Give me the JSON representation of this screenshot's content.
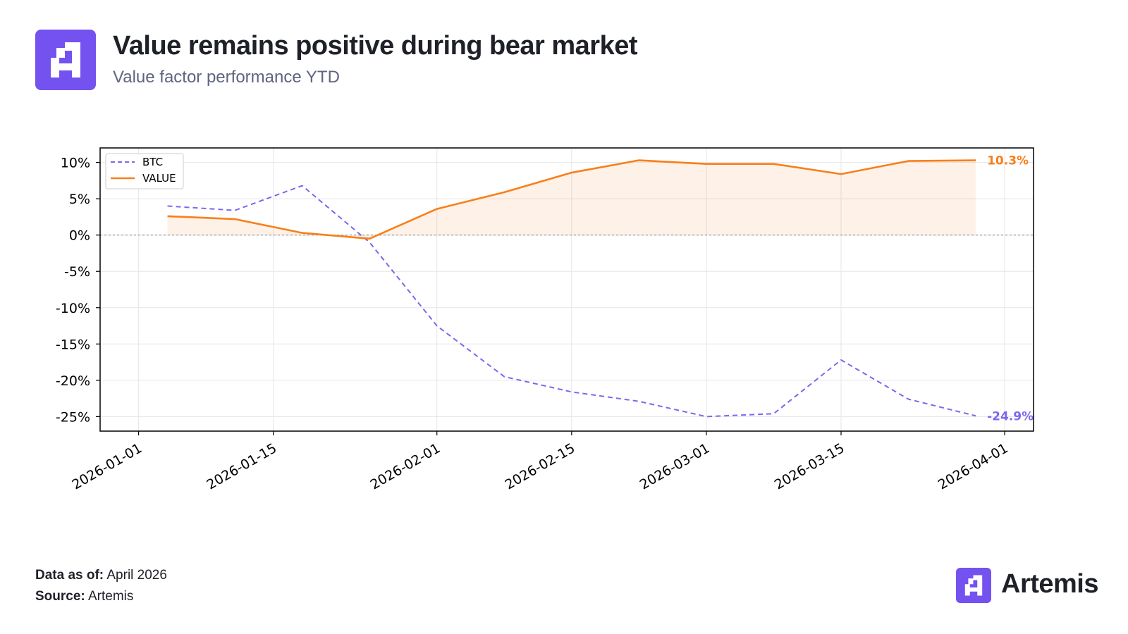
{
  "header": {
    "title": "Value remains positive during bear market",
    "subtitle": "Value factor performance YTD"
  },
  "footer": {
    "date_label": "Data as of:",
    "date_value": "April 2026",
    "source_label": "Source:",
    "source_value": "Artemis"
  },
  "brand": {
    "name": "Artemis",
    "color": "#7452f0"
  },
  "chart_data": {
    "type": "line",
    "title": "",
    "xlabel": "",
    "ylabel": "",
    "xlim": [
      "2025-12-28",
      "2026-04-04"
    ],
    "ylim": [
      -27,
      12
    ],
    "y_ticks": [
      10,
      5,
      0,
      -5,
      -10,
      -15,
      -20,
      -25
    ],
    "y_tick_labels": [
      "10%",
      "5%",
      "0%",
      "-5%",
      "-10%",
      "-15%",
      "-20%",
      "-25%"
    ],
    "x_ticks": [
      "2026-01-01",
      "2026-01-15",
      "2026-02-01",
      "2026-02-15",
      "2026-03-01",
      "2026-03-15",
      "2026-04-01"
    ],
    "grid": true,
    "legend_position": "top-left",
    "zero_line": true,
    "series": [
      {
        "name": "BTC",
        "style": "dashed",
        "color": "#7b68ee",
        "x": [
          "2026-01-04",
          "2026-01-11",
          "2026-01-18",
          "2026-01-25",
          "2026-02-01",
          "2026-02-08",
          "2026-02-15",
          "2026-02-22",
          "2026-03-01",
          "2026-03-08",
          "2026-03-15",
          "2026-03-22",
          "2026-03-29"
        ],
        "values": [
          4.0,
          3.4,
          6.8,
          -1.0,
          -12.5,
          -19.5,
          -21.6,
          -22.9,
          -25.0,
          -24.6,
          -17.2,
          -22.6,
          -24.9
        ],
        "end_label": "-24.9%"
      },
      {
        "name": "VALUE",
        "style": "solid",
        "color": "#f97f1a",
        "fill": true,
        "x": [
          "2026-01-04",
          "2026-01-11",
          "2026-01-18",
          "2026-01-25",
          "2026-02-01",
          "2026-02-08",
          "2026-02-15",
          "2026-02-22",
          "2026-03-01",
          "2026-03-08",
          "2026-03-15",
          "2026-03-22",
          "2026-03-29"
        ],
        "values": [
          2.6,
          2.2,
          0.3,
          -0.5,
          3.6,
          5.9,
          8.6,
          10.3,
          9.8,
          9.8,
          8.4,
          10.2,
          10.3
        ],
        "end_label": "10.3%"
      }
    ]
  }
}
